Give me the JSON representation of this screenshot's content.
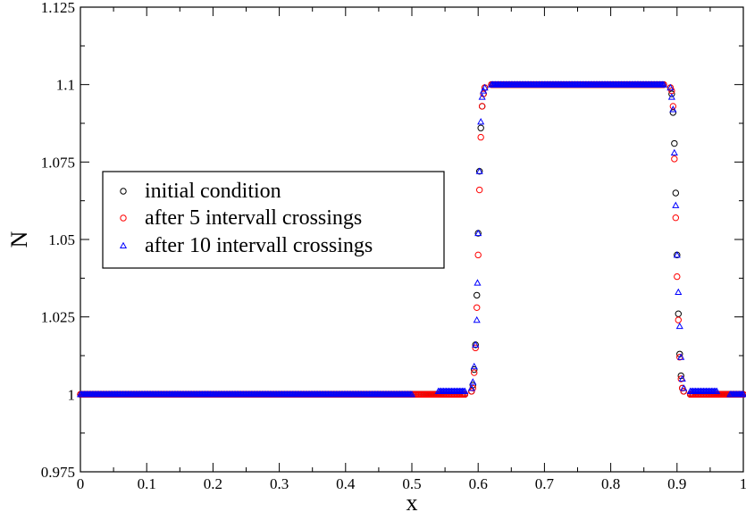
{
  "chart_data": {
    "type": "scatter",
    "xlabel": "x",
    "ylabel": "N",
    "xlim": [
      0,
      1
    ],
    "ylim": [
      0.975,
      1.125
    ],
    "x_ticks": [
      0,
      0.1,
      0.2,
      0.3,
      0.4,
      0.5,
      0.6,
      0.7,
      0.8,
      0.9,
      1
    ],
    "x_tick_labels": [
      "0",
      "0.1",
      "0.2",
      "0.3",
      "0.4",
      "0.5",
      "0.6",
      "0.7",
      "0.8",
      "0.9",
      "1"
    ],
    "y_ticks": [
      0.975,
      1.0,
      1.025,
      1.05,
      1.075,
      1.1,
      1.125
    ],
    "y_tick_labels": [
      "0.975",
      "1",
      "1.025",
      "1.05",
      "1.075",
      "1.1",
      "1.125"
    ],
    "grid": false,
    "legend_position": "left",
    "series": [
      {
        "name": "initial condition",
        "marker": "circle",
        "color": "#000000",
        "points": [
          [
            0.0,
            1.0
          ],
          [
            0.05,
            1.0
          ],
          [
            0.1,
            1.0
          ],
          [
            0.15,
            1.0
          ],
          [
            0.2,
            1.0
          ],
          [
            0.25,
            1.0
          ],
          [
            0.3,
            1.0
          ],
          [
            0.35,
            1.0
          ],
          [
            0.4,
            1.0
          ],
          [
            0.45,
            1.0
          ],
          [
            0.5,
            1.0
          ],
          [
            0.55,
            1.0
          ],
          [
            0.58,
            1.0
          ],
          [
            0.59,
            1.001
          ],
          [
            0.592,
            1.003
          ],
          [
            0.594,
            1.008
          ],
          [
            0.596,
            1.016
          ],
          [
            0.598,
            1.032
          ],
          [
            0.6,
            1.052
          ],
          [
            0.602,
            1.072
          ],
          [
            0.604,
            1.086
          ],
          [
            0.606,
            1.093
          ],
          [
            0.608,
            1.097
          ],
          [
            0.61,
            1.099
          ],
          [
            0.62,
            1.1
          ],
          [
            0.65,
            1.1
          ],
          [
            0.7,
            1.1
          ],
          [
            0.75,
            1.1
          ],
          [
            0.8,
            1.1
          ],
          [
            0.85,
            1.1
          ],
          [
            0.88,
            1.1
          ],
          [
            0.89,
            1.099
          ],
          [
            0.892,
            1.097
          ],
          [
            0.894,
            1.091
          ],
          [
            0.896,
            1.081
          ],
          [
            0.898,
            1.065
          ],
          [
            0.9,
            1.045
          ],
          [
            0.902,
            1.026
          ],
          [
            0.904,
            1.013
          ],
          [
            0.906,
            1.006
          ],
          [
            0.908,
            1.002
          ],
          [
            0.91,
            1.001
          ],
          [
            0.92,
            1.0
          ],
          [
            0.95,
            1.0
          ],
          [
            1.0,
            1.0
          ]
        ]
      },
      {
        "name": "after 5 intervall crossings",
        "marker": "circle",
        "color": "#ff0000",
        "points": [
          [
            0.0,
            1.0
          ],
          [
            0.05,
            1.0
          ],
          [
            0.1,
            1.0
          ],
          [
            0.15,
            1.0
          ],
          [
            0.2,
            1.0
          ],
          [
            0.25,
            1.0
          ],
          [
            0.3,
            1.0
          ],
          [
            0.35,
            1.0
          ],
          [
            0.4,
            1.0
          ],
          [
            0.45,
            1.0
          ],
          [
            0.5,
            1.0
          ],
          [
            0.55,
            1.0
          ],
          [
            0.58,
            1.0
          ],
          [
            0.59,
            1.001
          ],
          [
            0.592,
            1.002
          ],
          [
            0.594,
            1.007
          ],
          [
            0.596,
            1.015
          ],
          [
            0.598,
            1.028
          ],
          [
            0.6,
            1.045
          ],
          [
            0.602,
            1.066
          ],
          [
            0.604,
            1.083
          ],
          [
            0.606,
            1.093
          ],
          [
            0.608,
            1.097
          ],
          [
            0.61,
            1.099
          ],
          [
            0.62,
            1.1
          ],
          [
            0.65,
            1.1
          ],
          [
            0.7,
            1.1
          ],
          [
            0.75,
            1.1
          ],
          [
            0.8,
            1.1
          ],
          [
            0.85,
            1.1
          ],
          [
            0.88,
            1.1
          ],
          [
            0.89,
            1.099
          ],
          [
            0.892,
            1.098
          ],
          [
            0.894,
            1.093
          ],
          [
            0.896,
            1.076
          ],
          [
            0.898,
            1.057
          ],
          [
            0.9,
            1.038
          ],
          [
            0.902,
            1.024
          ],
          [
            0.904,
            1.012
          ],
          [
            0.906,
            1.005
          ],
          [
            0.908,
            1.002
          ],
          [
            0.91,
            1.001
          ],
          [
            0.92,
            1.0
          ],
          [
            0.95,
            1.0
          ],
          [
            1.0,
            1.0
          ]
        ]
      },
      {
        "name": "after 10 intervall crossings",
        "marker": "triangle",
        "color": "#0000ff",
        "points": [
          [
            0.0,
            1.0
          ],
          [
            0.05,
            1.0
          ],
          [
            0.1,
            1.0
          ],
          [
            0.15,
            1.0
          ],
          [
            0.2,
            1.0
          ],
          [
            0.25,
            1.0
          ],
          [
            0.3,
            1.0
          ],
          [
            0.35,
            1.0
          ],
          [
            0.4,
            1.0
          ],
          [
            0.45,
            1.0
          ],
          [
            0.5,
            1.0
          ],
          [
            0.54,
            1.001
          ],
          [
            0.56,
            1.001
          ],
          [
            0.58,
            1.001
          ],
          [
            0.59,
            1.002
          ],
          [
            0.592,
            1.004
          ],
          [
            0.594,
            1.009
          ],
          [
            0.596,
            1.016
          ],
          [
            0.598,
            1.024
          ],
          [
            0.599,
            1.036
          ],
          [
            0.6,
            1.052
          ],
          [
            0.602,
            1.072
          ],
          [
            0.604,
            1.088
          ],
          [
            0.606,
            1.096
          ],
          [
            0.608,
            1.098
          ],
          [
            0.61,
            1.099
          ],
          [
            0.62,
            1.1
          ],
          [
            0.65,
            1.1
          ],
          [
            0.7,
            1.1
          ],
          [
            0.75,
            1.1
          ],
          [
            0.8,
            1.1
          ],
          [
            0.85,
            1.1
          ],
          [
            0.88,
            1.1
          ],
          [
            0.89,
            1.099
          ],
          [
            0.892,
            1.096
          ],
          [
            0.894,
            1.092
          ],
          [
            0.896,
            1.078
          ],
          [
            0.898,
            1.061
          ],
          [
            0.9,
            1.045
          ],
          [
            0.902,
            1.033
          ],
          [
            0.904,
            1.022
          ],
          [
            0.906,
            1.012
          ],
          [
            0.908,
            1.005
          ],
          [
            0.91,
            1.002
          ],
          [
            0.92,
            1.001
          ],
          [
            0.94,
            1.001
          ],
          [
            0.96,
            1.001
          ],
          [
            0.98,
            1.0
          ],
          [
            1.0,
            1.0
          ]
        ]
      }
    ]
  }
}
